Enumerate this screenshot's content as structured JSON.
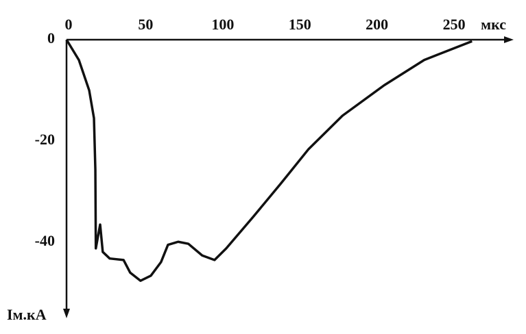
{
  "chart_data": {
    "type": "line",
    "x_label": "мкс",
    "y_label": "Iм.кА",
    "xlim": [
      0,
      290
    ],
    "ylim": [
      -55,
      0
    ],
    "xticks": [
      0,
      50,
      100,
      150,
      200,
      250
    ],
    "yticks": [
      0,
      -20,
      -40
    ],
    "grid": false,
    "series": [
      {
        "color": "#111111",
        "x": [
          0,
          8,
          14.7,
          17.8,
          18.7,
          19,
          21.8,
          23.5,
          28,
          37,
          41.3,
          48,
          54.7,
          61.3,
          65.8,
          72.4,
          79,
          88,
          96,
          103.6,
          121,
          139,
          157,
          179,
          206,
          232,
          263
        ],
        "values": [
          0,
          -4,
          -10,
          -15.5,
          -25.7,
          -41.2,
          -36.5,
          -41.9,
          -43.2,
          -43.5,
          -46,
          -47.6,
          -46.6,
          -43.9,
          -40.5,
          -39.9,
          -40.3,
          -42.6,
          -43.5,
          -41.2,
          -35,
          -28.4,
          -21.6,
          -15,
          -9,
          -4,
          -0.3
        ]
      }
    ]
  }
}
